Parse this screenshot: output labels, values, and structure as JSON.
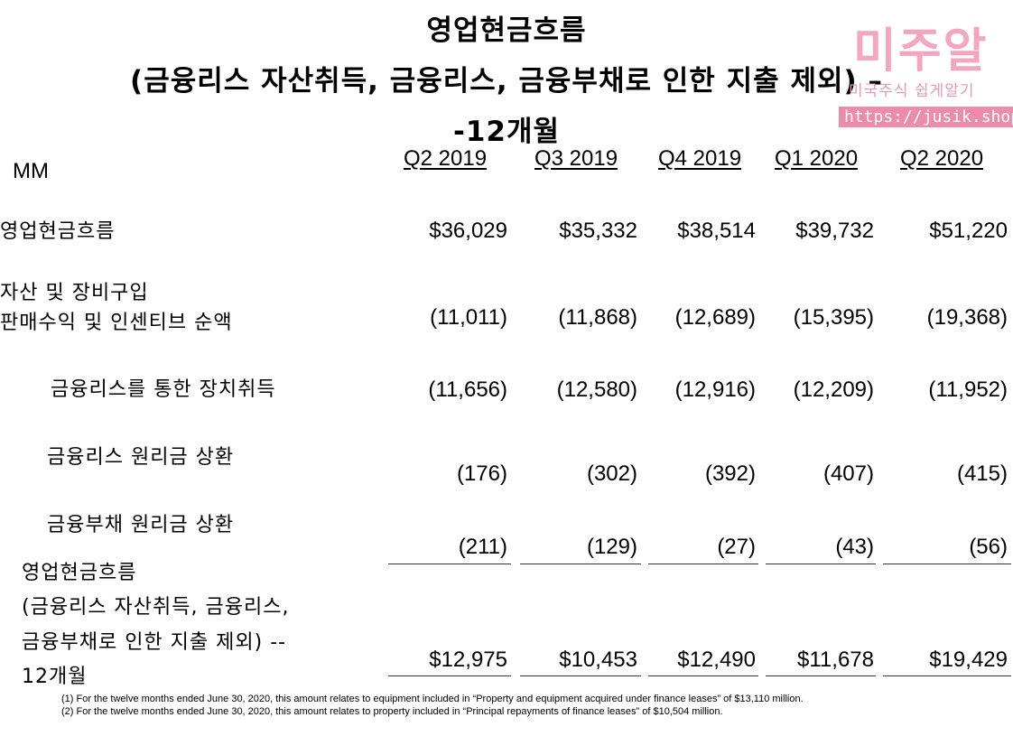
{
  "title": {
    "line1": "영업현금흐름",
    "line2": "(금융리스 자산취득, 금융리스, 금융부채로 인한 지출 제외) –",
    "line3": "-12개월"
  },
  "watermark": {
    "brand": "미주알",
    "tagline": "미국주식 쉽게알기",
    "url": "https://jusik.shop"
  },
  "unit": "MM",
  "columns": [
    "Q2 2019",
    "Q3 2019",
    "Q4 2019",
    "Q1 2020",
    "Q2 2020"
  ],
  "rows": [
    {
      "label": [
        "영업현금흐름"
      ],
      "values": [
        "$36,029",
        "$35,332",
        "$38,514",
        "$39,732",
        "$51,220"
      ]
    },
    {
      "label": [
        "자산 및 장비구입",
        "판매수익 및 인센티브 순액"
      ],
      "values": [
        "(11,011)",
        "(11,868)",
        "(12,689)",
        "(15,395)",
        "(19,368)"
      ]
    },
    {
      "label": [
        "금융리스를 통한 장치취득"
      ],
      "values": [
        "(11,656)",
        "(12,580)",
        "(12,916)",
        "(12,209)",
        "(11,952)"
      ]
    },
    {
      "label": [
        "금융리스 원리금 상환"
      ],
      "values": [
        "(176)",
        "(302)",
        "(392)",
        "(407)",
        "(415)"
      ]
    },
    {
      "label": [
        "금융부채 원리금 상환"
      ],
      "values": [
        "(211)",
        "(129)",
        "(27)",
        "(43)",
        "(56)"
      ]
    },
    {
      "label": [
        "영업현금흐름",
        "(금융리스 자산취득, 금융리스,",
        "금융부채로 인한 지출 제외) --",
        "12개월"
      ],
      "values": [
        "$12,975",
        "$10,453",
        "$12,490",
        "$11,678",
        "$19,429"
      ]
    }
  ],
  "footnotes": [
    "(1) For the twelve months ended June 30, 2020, this amount relates to equipment included in “Property and equipment acquired under finance leases” of $13,110 million.",
    "(2) For the twelve months ended June 30, 2020, this amount relates to property included in “Principal repayments of finance leases” of $10,504 million."
  ]
}
